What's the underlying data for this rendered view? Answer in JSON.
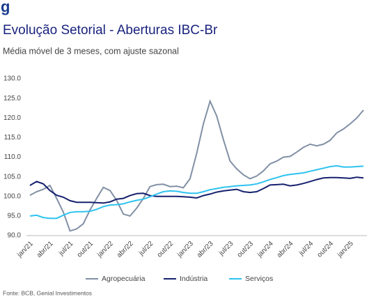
{
  "logo": "g",
  "chart_data": {
    "type": "line",
    "title": "Evolução Setorial - Aberturas IBC-Br",
    "subtitle": "Média móvel de 3 meses, com ajuste sazonal",
    "source": "Fonte: BCB, Genial Investimentos",
    "categories": [
      "jan/21",
      null,
      null,
      "abr/21",
      null,
      null,
      "jul/21",
      null,
      null,
      "out/21",
      null,
      null,
      "jan/22",
      null,
      null,
      "abr/22",
      null,
      null,
      "jul/22",
      null,
      null,
      "out/22",
      null,
      null,
      "jan/23",
      null,
      null,
      "abr/23",
      null,
      null,
      "jul/23",
      null,
      null,
      "out/23",
      null,
      null,
      "jan/24",
      null,
      null,
      "abr/24",
      null,
      null,
      "jul/24",
      null,
      null,
      "out/24",
      null,
      null,
      "jan/25",
      null,
      null
    ],
    "series": [
      {
        "name": "Agropecuária",
        "color": "#8190a5",
        "values": [
          100.3,
          101.2,
          101.8,
          102.8,
          99.5,
          96,
          91.2,
          91.7,
          93,
          96.5,
          99.5,
          102.3,
          101.5,
          99,
          95.5,
          95,
          97,
          99.5,
          102.5,
          103,
          103.1,
          102.5,
          102.6,
          102.2,
          104.5,
          111,
          118.5,
          124.3,
          120.5,
          114.5,
          109,
          107,
          105.5,
          104.5,
          105.2,
          106.5,
          108.3,
          109,
          110,
          110.2,
          111.3,
          112.5,
          113.3,
          112.9,
          113.3,
          114.3,
          116.2,
          117.2,
          118.5,
          120,
          122
        ]
      },
      {
        "name": "Indústria",
        "color": "#16216e",
        "values": [
          102.8,
          103.8,
          103.2,
          101.5,
          100.3,
          99.8,
          98.9,
          98.5,
          98.5,
          98.5,
          98.4,
          98.3,
          98.6,
          99.3,
          99.5,
          100.2,
          100.7,
          100.8,
          100.2,
          100,
          100,
          100,
          100,
          99.9,
          99.8,
          99.6,
          100.2,
          100.6,
          101.1,
          101.4,
          101.6,
          101.8,
          101.2,
          101,
          101.2,
          102,
          102.9,
          103,
          103.1,
          102.7,
          102.9,
          103.3,
          103.8,
          104.3,
          104.7,
          104.8,
          104.8,
          104.7,
          104.6,
          104.9,
          104.7
        ]
      },
      {
        "name": "Serviços",
        "color": "#2ec3ef",
        "values": [
          95,
          95.2,
          94.6,
          94.4,
          94.4,
          95.2,
          95.9,
          96.1,
          96.1,
          96.2,
          96.7,
          97.4,
          97.8,
          97.9,
          98.1,
          98.6,
          99,
          99.3,
          99.9,
          100.6,
          101.2,
          101.4,
          101.3,
          101,
          100.8,
          100.8,
          101.2,
          101.7,
          102,
          102.3,
          102.5,
          102.7,
          102.8,
          102.9,
          103.2,
          103.7,
          104.3,
          104.8,
          105.3,
          105.6,
          105.8,
          106,
          106.4,
          106.8,
          107.2,
          107.6,
          107.8,
          107.5,
          107.5,
          107.6,
          107.7
        ]
      }
    ],
    "ylim": [
      90,
      130
    ],
    "yticks": [
      {
        "value": 90,
        "label": "90.0"
      },
      {
        "value": 95,
        "label": "95.0"
      },
      {
        "value": 100,
        "label": "100.0"
      },
      {
        "value": 105,
        "label": "105.0"
      },
      {
        "value": 110,
        "label": "110.0"
      },
      {
        "value": 115,
        "label": "115.0"
      },
      {
        "value": 120,
        "label": "120.0"
      },
      {
        "value": 125,
        "label": "125.0"
      },
      {
        "value": 130,
        "label": "130.0"
      }
    ],
    "grid": false,
    "legend": "bottom"
  }
}
